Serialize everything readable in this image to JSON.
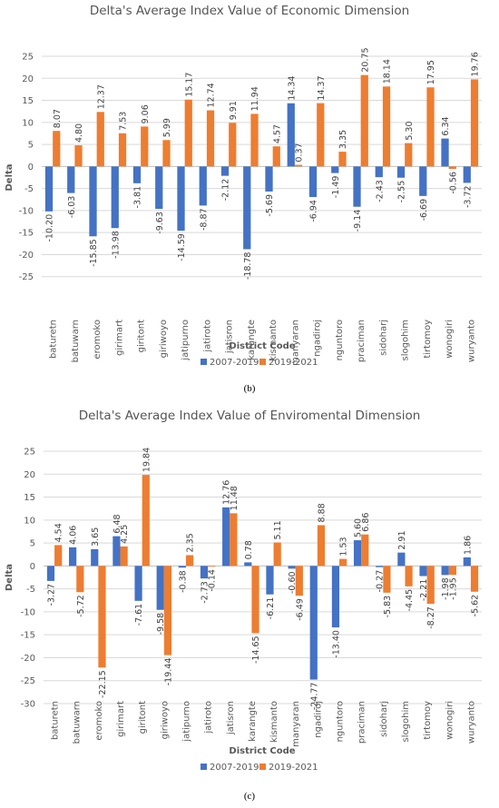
{
  "chart_data": [
    {
      "type": "bar",
      "title": "Delta's Average Index Value of Economic Dimension",
      "xlabel": "District Code",
      "ylabel": "Delta",
      "ylim": [
        -30,
        25
      ],
      "yticks": [
        25,
        20,
        15,
        10,
        5,
        0,
        -5,
        -10,
        -15,
        -20,
        -25
      ],
      "grid": true,
      "legend_position": "bottom",
      "categories": [
        "baturetn",
        "batuwarn",
        "eromoko",
        "girimart",
        "giritont",
        "giriwoyo",
        "jatipurno",
        "jatiroto",
        "jatisron",
        "karangte",
        "kismanto",
        "manyaran",
        "ngadiroj",
        "nguntoro",
        "praciman",
        "sidoharj",
        "slogohim",
        "tirtomoy",
        "wonogiri",
        "wuryanto"
      ],
      "series": [
        {
          "name": "2007-2019",
          "color": "#4472C4",
          "values": [
            -10.2,
            -6.03,
            -15.85,
            -13.98,
            -3.81,
            -9.63,
            -14.59,
            -8.87,
            -2.12,
            -18.78,
            -5.69,
            14.34,
            -6.94,
            -1.49,
            -9.14,
            -2.43,
            -2.55,
            -6.69,
            6.34,
            -3.72
          ],
          "labels": [
            "-10.20",
            "-6.03",
            "-15.85",
            "-13.98",
            "-3.81",
            "-9.63",
            "-14.59",
            "-8.87",
            "-2.12",
            "-18.78",
            "-5.69",
            "14.34",
            "-6.94",
            "-1.49",
            "-9.14",
            "-2.43",
            "-2.55",
            "-6.69",
            "6.34",
            "-3.72"
          ]
        },
        {
          "name": "2019-2021",
          "color": "#ED7D31",
          "values": [
            8.07,
            4.8,
            12.37,
            7.53,
            9.06,
            5.99,
            15.17,
            12.74,
            9.91,
            11.94,
            4.57,
            0.37,
            14.37,
            3.35,
            20.75,
            18.14,
            5.3,
            17.95,
            -0.56,
            19.76
          ],
          "labels": [
            "8.07",
            "4.80",
            "12.37",
            "7.53",
            "9.06",
            "5.99",
            "15.17",
            "12.74",
            "9.91",
            "11.94",
            "4.57",
            "0.37",
            "14.37",
            "3.35",
            "20.75",
            "18.14",
            "5.30",
            "17.95",
            "-0.56",
            "19.76"
          ]
        }
      ],
      "caption": "(b)"
    },
    {
      "type": "bar",
      "title": "Delta's Average Index Value of Enviromental Dimension",
      "xlabel": "District Code",
      "ylabel": "Delta",
      "ylim": [
        -30,
        25
      ],
      "yticks": [
        25,
        20,
        15,
        10,
        5,
        0,
        -5,
        -10,
        -15,
        -20,
        -25,
        -30
      ],
      "grid": true,
      "legend_position": "bottom",
      "categories": [
        "baturetn",
        "batuwarn",
        "eromoko",
        "girimart",
        "giritont",
        "giriwoyo",
        "jatipurno",
        "jatiroto",
        "jatisron",
        "karangte",
        "kismanto",
        "manyaran",
        "ngadiroj",
        "nguntoro",
        "praciman",
        "sidoharj",
        "slogohim",
        "tirtomoy",
        "wonogiri",
        "wuryanto"
      ],
      "series": [
        {
          "name": "2007-2019",
          "color": "#4472C4",
          "values": [
            -3.27,
            4.06,
            3.65,
            6.48,
            -7.61,
            -9.58,
            -0.38,
            -2.73,
            12.76,
            0.78,
            -6.21,
            -0.6,
            -24.77,
            -13.4,
            5.6,
            -0.27,
            2.91,
            -2.21,
            -1.98,
            1.86
          ],
          "labels": [
            "-3.27",
            "4.06",
            "3.65",
            "6.48",
            "-7.61",
            "-9.58",
            "-0.38",
            "-2.73",
            "12.76",
            "0.78",
            "-6.21",
            "-0.60",
            "-24.77",
            "-13.40",
            "5.60",
            "-0.27",
            "2.91",
            "-2.21",
            "-1.98",
            "1.86"
          ]
        },
        {
          "name": "2019-2021",
          "color": "#ED7D31",
          "values": [
            4.54,
            -5.72,
            -22.15,
            4.25,
            19.84,
            -19.44,
            2.35,
            -0.14,
            11.48,
            -14.65,
            5.11,
            -6.49,
            8.88,
            1.53,
            6.86,
            -5.83,
            -4.45,
            -8.27,
            -1.95,
            -5.62
          ],
          "labels": [
            "4.54",
            "-5.72",
            "-22.15",
            "4.25",
            "19.84",
            "-19.44",
            "2.35",
            "-0.14",
            "11.48",
            "-14.65",
            "5.11",
            "-6.49",
            "8.88",
            "1.53",
            "6.86",
            "-5.83",
            "-4.45",
            "-8.27",
            "-1.95",
            "-5.62"
          ]
        }
      ],
      "caption": "(c)"
    }
  ]
}
